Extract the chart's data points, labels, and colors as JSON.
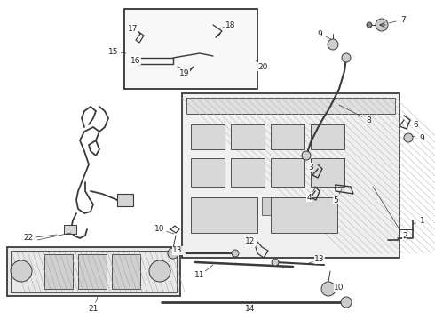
{
  "bg_color": "#ffffff",
  "line_color": "#3a3a3a",
  "fig_width": 4.9,
  "fig_height": 3.6,
  "dpi": 100
}
